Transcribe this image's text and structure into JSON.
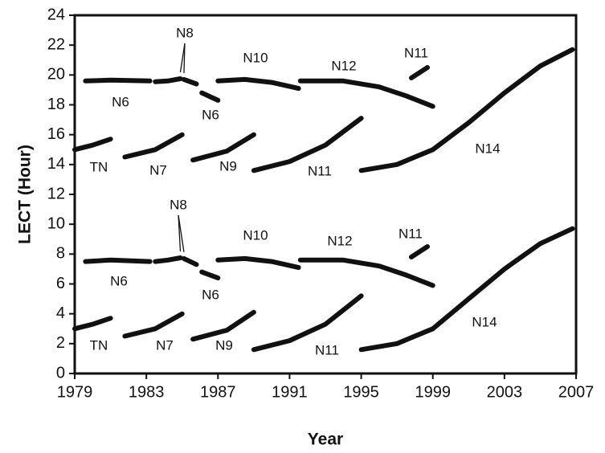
{
  "chart_data": {
    "type": "line",
    "x_label": "Year",
    "y_label": "LECT (Hour)",
    "xlim": [
      1979,
      2007
    ],
    "ylim": [
      0,
      24
    ],
    "xticks": [
      1979,
      1983,
      1987,
      1991,
      1995,
      1999,
      2003,
      2007
    ],
    "yticks": [
      0,
      2,
      4,
      6,
      8,
      10,
      12,
      14,
      16,
      18,
      20,
      22,
      24
    ],
    "color": "#111111",
    "series": [
      {
        "name": "N6",
        "x": [
          1979.6,
          1981,
          1983.2
        ],
        "values": [
          19.6,
          19.65,
          19.6
        ]
      },
      {
        "name": "N8",
        "x": [
          1983.5,
          1984.2,
          1984.9,
          1985.0,
          1985.1,
          1985.8
        ],
        "values": [
          19.55,
          19.6,
          19.75,
          null,
          19.7,
          19.4
        ]
      },
      {
        "name": "N6",
        "x": [
          1986.1,
          1987
        ],
        "values": [
          18.8,
          18.3
        ]
      },
      {
        "name": "N10",
        "x": [
          1987,
          1988.5,
          1990,
          1991.5
        ],
        "values": [
          19.6,
          19.7,
          19.5,
          19.1
        ]
      },
      {
        "name": "N12",
        "x": [
          1991.6,
          1994,
          1996,
          1997.5,
          1999
        ],
        "values": [
          19.6,
          19.6,
          19.2,
          18.6,
          17.9
        ]
      },
      {
        "name": "N11",
        "x": [
          1997.8,
          1998.7
        ],
        "values": [
          19.8,
          20.5
        ]
      },
      {
        "name": "TN",
        "x": [
          1979,
          1980,
          1981
        ],
        "values": [
          15.0,
          15.3,
          15.7
        ]
      },
      {
        "name": "N7",
        "x": [
          1981.8,
          1983.5,
          1985
        ],
        "values": [
          14.5,
          15.0,
          16.0
        ]
      },
      {
        "name": "N9",
        "x": [
          1985.6,
          1987.5,
          1989
        ],
        "values": [
          14.3,
          14.9,
          16.0
        ]
      },
      {
        "name": "N11",
        "x": [
          1989,
          1991,
          1993,
          1995
        ],
        "values": [
          13.6,
          14.2,
          15.3,
          17.1
        ]
      },
      {
        "name": "N14",
        "x": [
          1995,
          1997,
          1999,
          2001,
          2003,
          2005,
          2006.8
        ],
        "values": [
          13.6,
          14.0,
          15.0,
          16.8,
          18.8,
          20.6,
          21.7
        ]
      },
      {
        "name": "N6",
        "x": [
          1979.6,
          1981,
          1983.2
        ],
        "values": [
          7.5,
          7.6,
          7.5
        ]
      },
      {
        "name": "N8",
        "x": [
          1983.5,
          1984.2,
          1984.9,
          1985.0,
          1985.1,
          1985.8
        ],
        "values": [
          7.5,
          7.6,
          7.75,
          null,
          7.7,
          7.3
        ]
      },
      {
        "name": "N6",
        "x": [
          1986.1,
          1987
        ],
        "values": [
          6.8,
          6.4
        ]
      },
      {
        "name": "N10",
        "x": [
          1987,
          1988.5,
          1990,
          1991.5
        ],
        "values": [
          7.6,
          7.7,
          7.5,
          7.1
        ]
      },
      {
        "name": "N12",
        "x": [
          1991.6,
          1994,
          1996,
          1997.5,
          1999
        ],
        "values": [
          7.6,
          7.6,
          7.2,
          6.6,
          5.9
        ]
      },
      {
        "name": "N11",
        "x": [
          1997.8,
          1998.7
        ],
        "values": [
          7.8,
          8.5
        ]
      },
      {
        "name": "TN",
        "x": [
          1979,
          1980,
          1981
        ],
        "values": [
          3.0,
          3.3,
          3.7
        ]
      },
      {
        "name": "N7",
        "x": [
          1981.8,
          1983.5,
          1985
        ],
        "values": [
          2.5,
          3.0,
          4.0
        ]
      },
      {
        "name": "N9",
        "x": [
          1985.6,
          1987.5,
          1989
        ],
        "values": [
          2.3,
          2.9,
          4.1
        ]
      },
      {
        "name": "N11",
        "x": [
          1989,
          1991,
          1993,
          1995
        ],
        "values": [
          1.6,
          2.2,
          3.3,
          5.2
        ]
      },
      {
        "name": "N14",
        "x": [
          1995,
          1997,
          1999,
          2001,
          2003,
          2005,
          2006.8
        ],
        "values": [
          1.6,
          2.0,
          3.0,
          5.0,
          7.0,
          8.7,
          9.7
        ]
      }
    ]
  }
}
